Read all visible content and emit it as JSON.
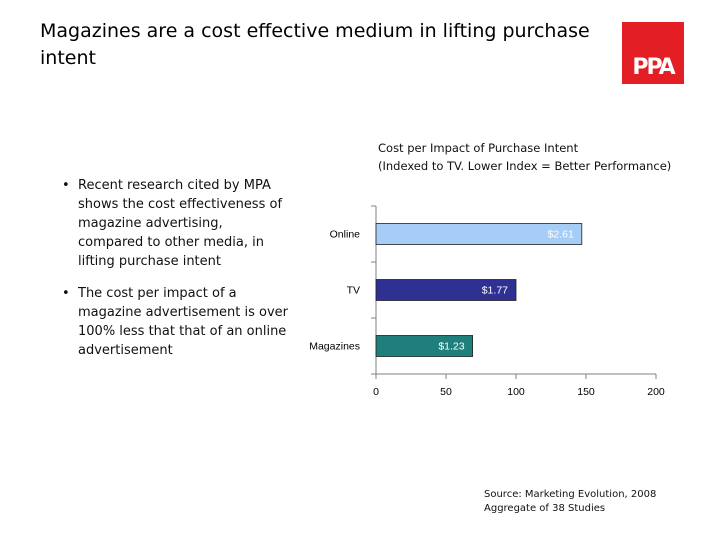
{
  "title": "Magazines are a cost effective medium in lifting purchase intent",
  "logo": {
    "text": "PPA",
    "color": "#e31e24"
  },
  "bullets": [
    "Recent research cited by MPA shows the cost effectiveness of magazine advertising, compared to other media, in lifting purchase intent",
    "The cost per impact of a magazine advertisement is over 100% less that that of an online advertisement"
  ],
  "chart_caption": {
    "line1": "Cost per Impact of Purchase Intent",
    "line2": "(Indexed to TV. Lower Index = Better Performance)"
  },
  "source": {
    "line1": "Source: Marketing Evolution, 2008",
    "line2": "Aggregate of 38 Studies"
  },
  "chart_data": {
    "type": "bar",
    "orientation": "horizontal",
    "title": "Cost per Impact of Purchase Intent (Indexed to TV. Lower Index = Better Performance)",
    "categories": [
      "Online",
      "TV",
      "Magazines"
    ],
    "values": [
      147,
      100,
      69
    ],
    "data_labels": [
      "$2.61",
      "$1.77",
      "$1.23"
    ],
    "colors": [
      "#a6cdf5",
      "#2e3192",
      "#1f7f7c"
    ],
    "label_colors": [
      "#ffffff",
      "#ffffff",
      "#ffffff"
    ],
    "xlim": [
      0,
      200
    ],
    "xticks": [
      0,
      50,
      100,
      150,
      200
    ],
    "xlabel": "",
    "ylabel": "",
    "grid": false
  }
}
